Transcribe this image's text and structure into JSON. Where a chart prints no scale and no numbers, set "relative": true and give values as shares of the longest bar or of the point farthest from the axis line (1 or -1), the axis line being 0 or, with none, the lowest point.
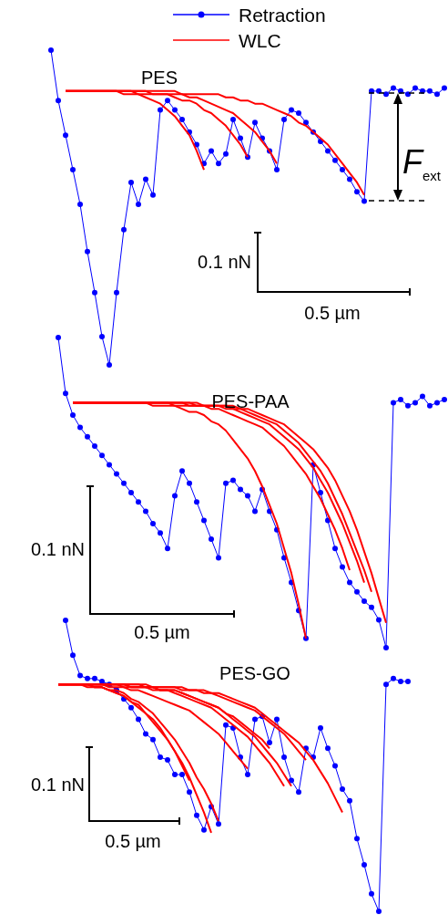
{
  "chart_data": [
    {
      "type": "line",
      "title": "PES",
      "relative": true,
      "legend": "top",
      "categories": [
        null,
        null,
        null,
        null,
        null,
        null,
        null,
        null,
        null,
        null,
        null,
        null,
        null,
        null,
        null,
        null,
        null,
        null,
        null,
        null,
        null,
        null,
        null,
        null,
        null,
        null,
        null,
        null,
        null,
        null,
        null,
        null,
        null,
        null,
        null,
        null,
        null,
        null,
        null,
        null,
        null,
        null,
        null,
        null,
        null,
        null,
        null,
        null,
        null,
        null,
        null,
        null,
        null,
        null,
        null
      ],
      "series": [
        {
          "name": "Retraction",
          "color": "#0000ff",
          "marker": "circle",
          "values": [
            1,
            0.84,
            0.73,
            0.62,
            0.51,
            0.36,
            0.23,
            0.09,
            0,
            0.23,
            0.43,
            0.58,
            0.51,
            0.59,
            0.54,
            0.81,
            0.84,
            0.81,
            0.78,
            0.74,
            0.7,
            0.64,
            0.68,
            0.64,
            0.67,
            0.78,
            0.72,
            0.66,
            0.77,
            0.72,
            0.68,
            0.62,
            0.78,
            0.81,
            0.8,
            0.77,
            0.74,
            0.71,
            0.68,
            0.65,
            0.62,
            0.59,
            0.55,
            0.52,
            0.87,
            0.87,
            0.86,
            0.88,
            0.87,
            0.86,
            0.88,
            0.87,
            0.87,
            0.86,
            0.88
          ]
        },
        {
          "name": "WLC",
          "color": "#ff0000",
          "marker": "none",
          "values": [
            null,
            null,
            0.87,
            0.87,
            0.87,
            0.87,
            0.87,
            0.87,
            0.87,
            0.87,
            0.86,
            0.86,
            0.86,
            0.85,
            0.84,
            0.83,
            0.81,
            0.79,
            0.76,
            0.73,
            0.68,
            0.62,
            null,
            null,
            null,
            null,
            null,
            null,
            null,
            null,
            null,
            null,
            null,
            null,
            null,
            null,
            null,
            null,
            null,
            null,
            null,
            null,
            null,
            null,
            null,
            null,
            null,
            null,
            null,
            null,
            null,
            null,
            null,
            null,
            null
          ]
        },
        {
          "color": "#ff0000",
          "marker": "none",
          "values": [
            null,
            null,
            0.87,
            0.87,
            0.87,
            0.87,
            0.87,
            0.87,
            0.87,
            0.87,
            0.87,
            0.87,
            0.86,
            0.86,
            0.86,
            0.86,
            0.86,
            0.85,
            0.84,
            0.84,
            0.83,
            0.81,
            0.8,
            0.78,
            0.76,
            0.73,
            0.7,
            0.66,
            null,
            null,
            null,
            null,
            null,
            null,
            null,
            null,
            null,
            null,
            null,
            null,
            null,
            null,
            null,
            null,
            null,
            null,
            null,
            null,
            null,
            null,
            null,
            null,
            null,
            null,
            null
          ]
        },
        {
          "color": "#ff0000",
          "marker": "none",
          "values": [
            null,
            null,
            0.87,
            0.87,
            0.87,
            0.87,
            0.87,
            0.87,
            0.87,
            0.87,
            0.87,
            0.87,
            0.87,
            0.87,
            0.86,
            0.86,
            0.86,
            0.86,
            0.86,
            0.85,
            0.85,
            0.84,
            0.83,
            0.82,
            0.81,
            0.8,
            0.78,
            0.76,
            0.74,
            0.71,
            0.68,
            0.64,
            null,
            null,
            null,
            null,
            null,
            null,
            null,
            null,
            null,
            null,
            null,
            null,
            null,
            null,
            null,
            null,
            null,
            null,
            null,
            null,
            null,
            null,
            null
          ]
        },
        {
          "color": "#ff0000",
          "marker": "none",
          "values": [
            null,
            null,
            0.87,
            0.87,
            0.87,
            0.87,
            0.87,
            0.87,
            0.87,
            0.87,
            0.87,
            0.87,
            0.87,
            0.87,
            0.87,
            0.87,
            0.87,
            0.87,
            0.86,
            0.86,
            0.86,
            0.86,
            0.86,
            0.86,
            0.85,
            0.85,
            0.84,
            0.84,
            0.83,
            0.83,
            0.82,
            0.81,
            0.8,
            0.79,
            0.77,
            0.76,
            0.74,
            0.72,
            0.7,
            0.67,
            0.64,
            0.61,
            0.58,
            0.54,
            null,
            null,
            null,
            null,
            null,
            null,
            null,
            null,
            null,
            null,
            null
          ]
        }
      ],
      "annotations": [
        "0.1 nN",
        "0.5 µm",
        "F$_{ext}$"
      ]
    },
    {
      "type": "line",
      "title": "PES-PAA",
      "relative": true,
      "categories": [
        null,
        null,
        null,
        null,
        null,
        null,
        null,
        null,
        null,
        null,
        null,
        null,
        null,
        null,
        null,
        null,
        null,
        null,
        null,
        null,
        null,
        null,
        null,
        null,
        null,
        null,
        null,
        null,
        null,
        null,
        null,
        null,
        null,
        null,
        null,
        null,
        null,
        null,
        null,
        null,
        null,
        null,
        null,
        null,
        null,
        null,
        null,
        null,
        null,
        null,
        null,
        null,
        null,
        null,
        null
      ],
      "series": [
        {
          "color": "#0000ff",
          "marker": "circle",
          "values": [
            null,
            1,
            0.82,
            0.75,
            0.71,
            0.68,
            0.65,
            0.62,
            0.59,
            0.56,
            0.53,
            0.5,
            0.47,
            0.44,
            0.4,
            0.37,
            0.32,
            0.49,
            0.57,
            0.53,
            0.47,
            0.41,
            0.35,
            0.29,
            0.53,
            0.54,
            0.51,
            0.49,
            0.44,
            0.51,
            0.44,
            0.38,
            0.29,
            0.21,
            0.12,
            0.03,
            0.59,
            0.5,
            0.41,
            0.32,
            0.26,
            0.21,
            0.18,
            0.15,
            0.13,
            0.09,
            0,
            0.79,
            0.8,
            0.78,
            0.79,
            0.81,
            0.78,
            0.79,
            0.8
          ]
        },
        {
          "color": "#ff0000",
          "marker": "none",
          "values": [
            null,
            null,
            null,
            0.79,
            0.79,
            0.79,
            0.79,
            0.79,
            0.79,
            0.79,
            0.79,
            0.79,
            0.79,
            0.79,
            0.78,
            0.78,
            0.78,
            0.78,
            0.77,
            0.76,
            0.76,
            0.75,
            0.73,
            0.72,
            0.7,
            0.67,
            0.64,
            0.61,
            0.57,
            0.52,
            0.46,
            0.4,
            0.32,
            0.24,
            0.14,
            0.03,
            null,
            null,
            null,
            null,
            null,
            null,
            null,
            null,
            null,
            null,
            null,
            null,
            null,
            null,
            null,
            null,
            null,
            null,
            null
          ]
        },
        {
          "color": "#ff0000",
          "marker": "none",
          "values": [
            null,
            null,
            null,
            0.79,
            0.79,
            0.79,
            0.79,
            0.79,
            0.79,
            0.79,
            0.79,
            0.79,
            0.79,
            0.79,
            0.79,
            0.79,
            0.79,
            0.78,
            0.78,
            0.78,
            0.78,
            0.78,
            0.77,
            0.77,
            0.76,
            0.75,
            0.74,
            0.73,
            0.72,
            0.71,
            0.69,
            0.67,
            0.65,
            0.62,
            0.59,
            0.56,
            0.52,
            0.48,
            0.43,
            0.38,
            0.32,
            0.25,
            null,
            null,
            null,
            null,
            null,
            null,
            null,
            null,
            null,
            null,
            null,
            null,
            null
          ]
        },
        {
          "color": "#ff0000",
          "marker": "none",
          "values": [
            null,
            null,
            null,
            0.79,
            0.79,
            0.79,
            0.79,
            0.79,
            0.79,
            0.79,
            0.79,
            0.79,
            0.79,
            0.79,
            0.79,
            0.79,
            0.79,
            0.79,
            0.79,
            0.78,
            0.78,
            0.78,
            0.78,
            0.78,
            0.77,
            0.77,
            0.76,
            0.75,
            0.74,
            0.73,
            0.72,
            0.7,
            0.68,
            0.66,
            0.64,
            0.61,
            0.58,
            0.54,
            0.5,
            0.45,
            0.4,
            0.34,
            0.28,
            0.21,
            null,
            null,
            null,
            null,
            null,
            null,
            null,
            null,
            null,
            null,
            null
          ]
        },
        {
          "color": "#ff0000",
          "marker": "none",
          "values": [
            null,
            null,
            null,
            0.79,
            0.79,
            0.79,
            0.79,
            0.79,
            0.79,
            0.79,
            0.79,
            0.79,
            0.79,
            0.79,
            0.79,
            0.79,
            0.79,
            0.79,
            0.79,
            0.79,
            0.78,
            0.78,
            0.78,
            0.78,
            0.78,
            0.77,
            0.77,
            0.76,
            0.75,
            0.74,
            0.73,
            0.72,
            0.7,
            0.68,
            0.66,
            0.63,
            0.6,
            0.57,
            0.53,
            0.48,
            0.43,
            0.37,
            0.31,
            0.25,
            0.18,
            null,
            null,
            null,
            null,
            null,
            null,
            null,
            null,
            null,
            null
          ]
        },
        {
          "color": "#ff0000",
          "marker": "none",
          "values": [
            null,
            null,
            null,
            0.79,
            0.79,
            0.79,
            0.79,
            0.79,
            0.79,
            0.79,
            0.79,
            0.79,
            0.79,
            0.79,
            0.79,
            0.79,
            0.79,
            0.79,
            0.79,
            0.79,
            0.79,
            0.78,
            0.78,
            0.78,
            0.78,
            0.78,
            0.77,
            0.77,
            0.76,
            0.75,
            0.74,
            0.73,
            0.72,
            0.7,
            0.68,
            0.66,
            0.64,
            0.61,
            0.58,
            0.54,
            0.49,
            0.44,
            0.38,
            0.31,
            0.24,
            0.16,
            0.08,
            null,
            null,
            null,
            null,
            null,
            null,
            null,
            null
          ]
        }
      ],
      "annotations": [
        "0.1 nN",
        "0.5 µm"
      ]
    },
    {
      "type": "line",
      "title": "PES-GO",
      "relative": true,
      "categories": [
        null,
        null,
        null,
        null,
        null,
        null,
        null,
        null,
        null,
        null,
        null,
        null,
        null,
        null,
        null,
        null,
        null,
        null,
        null,
        null,
        null,
        null,
        null,
        null,
        null,
        null,
        null,
        null,
        null,
        null,
        null,
        null,
        null,
        null,
        null,
        null,
        null,
        null,
        null,
        null,
        null,
        null,
        null,
        null,
        null,
        null,
        null,
        null,
        null,
        null,
        null,
        null,
        null,
        null,
        null
      ],
      "series": [
        {
          "color": "#0000ff",
          "marker": "circle",
          "values": [
            null,
            null,
            1,
            0.88,
            0.81,
            0.8,
            0.8,
            0.79,
            0.78,
            0.76,
            0.73,
            0.7,
            0.66,
            0.61,
            0.59,
            0.53,
            0.52,
            0.47,
            0.47,
            0.41,
            0.33,
            0.28,
            0.36,
            0.3,
            0.64,
            0.63,
            0.53,
            0.47,
            0.66,
            0.67,
            0.58,
            0.66,
            0.53,
            0.45,
            0.41,
            0.56,
            0.53,
            0.63,
            0.56,
            0.5,
            0.42,
            0.38,
            0.25,
            0.16,
            0.06,
            0,
            0.78,
            0.8,
            0.79,
            0.79,
            null,
            null,
            null,
            null,
            null
          ]
        },
        {
          "color": "#ff0000",
          "marker": "none",
          "values": [
            null,
            0.78,
            0.78,
            0.78,
            0.78,
            0.77,
            0.77,
            0.77,
            0.76,
            0.75,
            0.74,
            0.72,
            0.7,
            0.68,
            0.65,
            0.62,
            0.59,
            0.55,
            0.5,
            0.45,
            null,
            null,
            null,
            null,
            null,
            null,
            null,
            null,
            null,
            null,
            null,
            null,
            null,
            null,
            null,
            null,
            null,
            null,
            null,
            null,
            null,
            null,
            null,
            null,
            null,
            null,
            null,
            null,
            null,
            null,
            null,
            null,
            null,
            null,
            null
          ]
        },
        {
          "color": "#ff0000",
          "marker": "none",
          "values": [
            null,
            0.78,
            0.78,
            0.78,
            0.78,
            0.78,
            0.77,
            0.77,
            0.76,
            0.75,
            0.74,
            0.72,
            0.71,
            0.68,
            0.66,
            0.63,
            0.59,
            0.55,
            0.51,
            0.46,
            0.4,
            0.34,
            0.27,
            null,
            null,
            null,
            null,
            null,
            null,
            null,
            null,
            null,
            null,
            null,
            null,
            null,
            null,
            null,
            null,
            null,
            null,
            null,
            null,
            null,
            null,
            null,
            null,
            null,
            null,
            null,
            null,
            null,
            null,
            null,
            null
          ]
        },
        {
          "color": "#ff0000",
          "marker": "none",
          "values": [
            null,
            0.78,
            0.78,
            0.78,
            0.78,
            0.78,
            0.77,
            0.77,
            0.76,
            0.76,
            0.75,
            0.73,
            0.72,
            0.7,
            0.68,
            0.65,
            0.62,
            0.59,
            0.55,
            0.51,
            0.46,
            0.42,
            0.37,
            0.31,
            null,
            null,
            null,
            null,
            null,
            null,
            null,
            null,
            null,
            null,
            null,
            null,
            null,
            null,
            null,
            null,
            null,
            null,
            null,
            null,
            null,
            null,
            null,
            null,
            null,
            null,
            null,
            null,
            null,
            null,
            null
          ]
        },
        {
          "color": "#ff0000",
          "marker": "none",
          "values": [
            null,
            0.78,
            0.78,
            0.78,
            0.78,
            0.78,
            0.78,
            0.78,
            0.77,
            0.77,
            0.77,
            0.76,
            0.76,
            0.75,
            0.74,
            0.73,
            0.72,
            0.71,
            0.7,
            0.69,
            0.67,
            0.65,
            0.63,
            0.61,
            0.58,
            0.55,
            0.52,
            0.49,
            null,
            null,
            null,
            null,
            null,
            null,
            null,
            null,
            null,
            null,
            null,
            null,
            null,
            null,
            null,
            null,
            null,
            null,
            null,
            null,
            null,
            null,
            null,
            null,
            null,
            null,
            null
          ]
        },
        {
          "color": "#ff0000",
          "marker": "none",
          "values": [
            null,
            0.78,
            0.78,
            0.78,
            0.78,
            0.78,
            0.78,
            0.78,
            0.78,
            0.78,
            0.78,
            0.77,
            0.77,
            0.77,
            0.77,
            0.76,
            0.76,
            0.76,
            0.75,
            0.74,
            0.73,
            0.72,
            0.71,
            0.7,
            0.68,
            0.67,
            0.65,
            0.63,
            0.61,
            0.59,
            0.56,
            null,
            null,
            null,
            null,
            null,
            null,
            null,
            null,
            null,
            null,
            null,
            null,
            null,
            null,
            null,
            null,
            null,
            null,
            null,
            null,
            null,
            null,
            null,
            null
          ]
        },
        {
          "color": "#ff0000",
          "marker": "none",
          "values": [
            null,
            0.78,
            0.78,
            0.78,
            0.78,
            0.78,
            0.78,
            0.78,
            0.78,
            0.78,
            0.77,
            0.77,
            0.77,
            0.77,
            0.76,
            0.76,
            0.76,
            0.75,
            0.74,
            0.73,
            0.72,
            0.71,
            0.7,
            0.68,
            0.66,
            0.64,
            0.62,
            0.6,
            0.57,
            0.54,
            0.51,
            0.47,
            0.43,
            null,
            null,
            null,
            null,
            null,
            null,
            null,
            null,
            null,
            null,
            null,
            null,
            null,
            null,
            null,
            null,
            null,
            null,
            null,
            null,
            null,
            null
          ]
        },
        {
          "color": "#ff0000",
          "marker": "none",
          "values": [
            null,
            0.78,
            0.78,
            0.78,
            0.78,
            0.78,
            0.78,
            0.78,
            0.78,
            0.78,
            0.78,
            0.77,
            0.77,
            0.77,
            0.77,
            0.76,
            0.76,
            0.76,
            0.75,
            0.74,
            0.73,
            0.72,
            0.71,
            0.7,
            0.68,
            0.66,
            0.64,
            0.62,
            0.6,
            0.57,
            0.54,
            0.51,
            0.47,
            0.43,
            null,
            null,
            null,
            null,
            null,
            null,
            null,
            null,
            null,
            null,
            null,
            null,
            null,
            null,
            null,
            null,
            null,
            null,
            null,
            null,
            null
          ]
        },
        {
          "color": "#ff0000",
          "marker": "none",
          "values": [
            null,
            0.78,
            0.78,
            0.78,
            0.78,
            0.78,
            0.78,
            0.78,
            0.78,
            0.78,
            0.78,
            0.78,
            0.78,
            0.77,
            0.77,
            0.77,
            0.77,
            0.77,
            0.76,
            0.76,
            0.76,
            0.75,
            0.75,
            0.74,
            0.73,
            0.72,
            0.71,
            0.7,
            0.69,
            0.67,
            0.65,
            0.63,
            0.61,
            0.58,
            0.55,
            0.52,
            null,
            null,
            null,
            null,
            null,
            null,
            null,
            null,
            null,
            null,
            null,
            null,
            null,
            null,
            null,
            null,
            null,
            null,
            null
          ]
        },
        {
          "color": "#ff0000",
          "marker": "none",
          "values": [
            null,
            0.78,
            0.78,
            0.78,
            0.78,
            0.78,
            0.78,
            0.78,
            0.78,
            0.78,
            0.78,
            0.78,
            0.78,
            0.78,
            0.77,
            0.77,
            0.77,
            0.77,
            0.77,
            0.76,
            0.76,
            0.76,
            0.75,
            0.75,
            0.74,
            0.73,
            0.72,
            0.71,
            0.7,
            0.68,
            0.66,
            0.64,
            0.62,
            0.6,
            0.58,
            0.55,
            0.52,
            0.48,
            0.44,
            0.39,
            0.34,
            null,
            null,
            null,
            null,
            null,
            null,
            null,
            null,
            null,
            null,
            null,
            null,
            null,
            null
          ]
        }
      ],
      "annotations": [
        "0.1 nN",
        "0.5 µm"
      ]
    }
  ]
}
